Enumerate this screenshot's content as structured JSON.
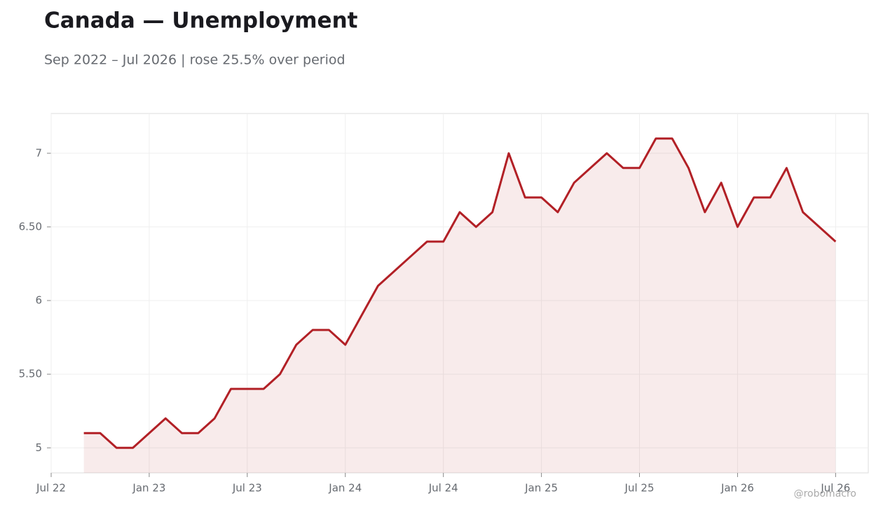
{
  "chart_data": {
    "type": "line",
    "title": "Canada — Unemployment",
    "subtitle": "Sep 2022 – Jul 2026 | rose 25.5% over period",
    "watermark": "@robomacro",
    "x": [
      "2022-09",
      "2022-10",
      "2022-11",
      "2022-12",
      "2023-01",
      "2023-02",
      "2023-03",
      "2023-04",
      "2023-05",
      "2023-06",
      "2023-07",
      "2023-08",
      "2023-09",
      "2023-10",
      "2023-11",
      "2023-12",
      "2024-01",
      "2024-02",
      "2024-03",
      "2024-04",
      "2024-05",
      "2024-06",
      "2024-07",
      "2024-08",
      "2024-09",
      "2024-10",
      "2024-11",
      "2024-12",
      "2025-01",
      "2025-02",
      "2025-03",
      "2025-04",
      "2025-05",
      "2025-06",
      "2025-07",
      "2025-08",
      "2025-09",
      "2025-10",
      "2025-11",
      "2025-12",
      "2026-01",
      "2026-02",
      "2026-03",
      "2026-04",
      "2026-05",
      "2026-06",
      "2026-07"
    ],
    "series": [
      {
        "name": "Unemployment",
        "color": "#b22026",
        "values": [
          5.1,
          5.1,
          5.0,
          5.0,
          5.1,
          5.2,
          5.1,
          5.1,
          5.2,
          5.4,
          5.4,
          5.4,
          5.5,
          5.7,
          5.8,
          5.8,
          5.7,
          5.9,
          6.1,
          6.2,
          6.3,
          6.4,
          6.4,
          6.6,
          6.5,
          6.6,
          7.0,
          6.7,
          6.7,
          6.6,
          6.8,
          6.9,
          7.0,
          6.9,
          6.9,
          7.1,
          7.1,
          6.9,
          6.6,
          6.8,
          6.5,
          6.7,
          6.7,
          6.9,
          6.6,
          6.5,
          6.4
        ]
      }
    ],
    "xlim": [
      "2022-07",
      "2026-09"
    ],
    "xticks": [
      {
        "value": "2022-07",
        "label": "Jul 22"
      },
      {
        "value": "2023-01",
        "label": "Jan 23"
      },
      {
        "value": "2023-07",
        "label": "Jul 23"
      },
      {
        "value": "2024-01",
        "label": "Jan 24"
      },
      {
        "value": "2024-07",
        "label": "Jul 24"
      },
      {
        "value": "2025-01",
        "label": "Jan 25"
      },
      {
        "value": "2025-07",
        "label": "Jul 25"
      },
      {
        "value": "2026-01",
        "label": "Jan 26"
      },
      {
        "value": "2026-07",
        "label": "Jul 26"
      }
    ],
    "ylim": [
      4.83,
      7.27
    ],
    "yticks": [
      5,
      {
        "value": 5.5,
        "label": "5.50"
      },
      6,
      {
        "value": 6.5,
        "label": "6.50"
      },
      7
    ],
    "grid": true,
    "area": true
  }
}
